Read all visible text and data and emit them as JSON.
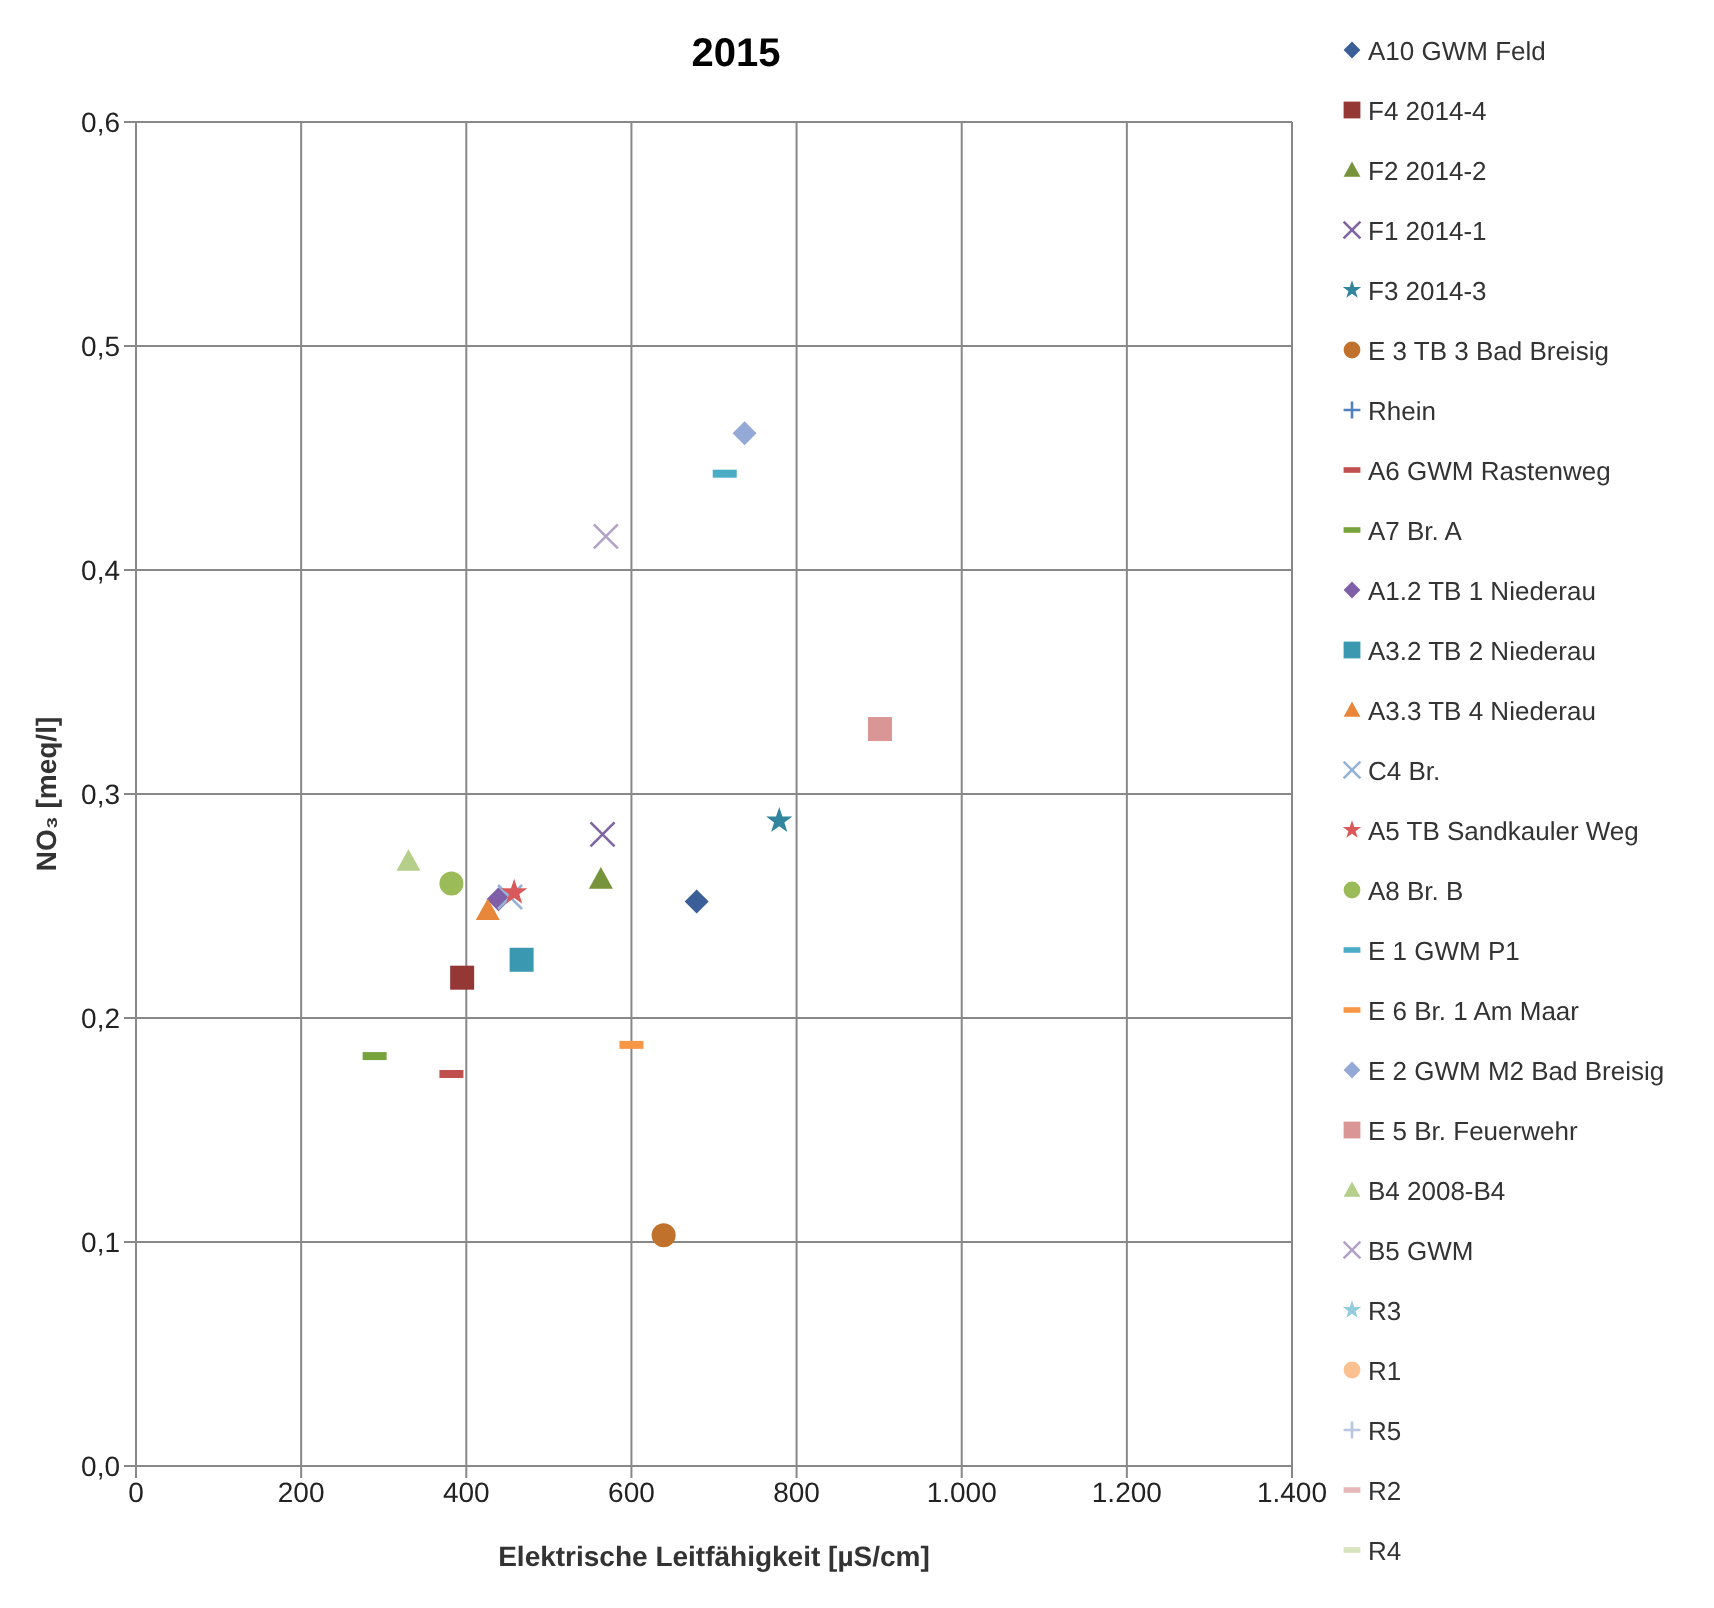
{
  "chart_data": {
    "type": "scatter",
    "title": "2015",
    "xlabel": "Elektrische Leitfähigkeit [µS/cm]",
    "ylabel": "NO₃ [meq/l]",
    "xlim": [
      0,
      1400
    ],
    "ylim": [
      0,
      0.6
    ],
    "xticks": [
      0,
      200,
      400,
      600,
      800,
      {
        "value": 1000,
        "label": "1.000"
      },
      {
        "value": 1200,
        "label": "1.200"
      },
      {
        "value": 1400,
        "label": "1.400"
      }
    ],
    "yticks": [
      {
        "value": 0,
        "label": "0,0"
      },
      {
        "value": 0.1,
        "label": "0,1"
      },
      {
        "value": 0.2,
        "label": "0,2"
      },
      {
        "value": 0.3,
        "label": "0,3"
      },
      {
        "value": 0.4,
        "label": "0,4"
      },
      {
        "value": 0.5,
        "label": "0,5"
      },
      {
        "value": 0.6,
        "label": "0,6"
      }
    ],
    "grid": true,
    "legend": "right",
    "series": [
      {
        "name": "A10 GWM Feld",
        "color": "#3a5f98",
        "marker": "diamond",
        "x": [
          679
        ],
        "values": [
          0.252
        ]
      },
      {
        "name": "F4 2014-4",
        "color": "#953735",
        "marker": "square",
        "x": [
          395
        ],
        "values": [
          0.218
        ]
      },
      {
        "name": "F2 2014-2",
        "color": "#77933c",
        "marker": "triangle",
        "x": [
          563
        ],
        "values": [
          0.262
        ]
      },
      {
        "name": "F1 2014-1",
        "color": "#8064a2",
        "marker": "cross",
        "x": [
          565
        ],
        "values": [
          0.282
        ]
      },
      {
        "name": "F3 2014-3",
        "color": "#31859c",
        "marker": "star",
        "x": [
          779
        ],
        "values": [
          0.288
        ]
      },
      {
        "name": "E 3 TB 3 Bad Breisig",
        "color": "#c0712b",
        "marker": "circle",
        "x": [
          639
        ],
        "values": [
          0.103
        ]
      },
      {
        "name": "Rhein",
        "color": "#4f81bd",
        "marker": "plus",
        "x": [
          null
        ],
        "values": [
          null
        ]
      },
      {
        "name": "A6 GWM  Rastenweg",
        "color": "#c0504d",
        "x": [
          382
        ],
        "values": [
          0.175
        ]
      },
      {
        "name": "A7 Br. A",
        "color": "#77a33c",
        "x": [
          289
        ],
        "values": [
          0.183
        ]
      },
      {
        "name": "A1.2 TB 1 Niederau",
        "color": "#7f5fa8",
        "marker": "diamond",
        "x": [
          439
        ],
        "values": [
          0.253
        ]
      },
      {
        "name": "A3.2 TB 2 Niederau",
        "color": "#3a98b0",
        "marker": "square",
        "x": [
          467
        ],
        "values": [
          0.226
        ]
      },
      {
        "name": "A3.3 TB 4 Niederau",
        "color": "#e8873a",
        "marker": "triangle",
        "x": [
          426
        ],
        "values": [
          0.248
        ]
      },
      {
        "name": "C4 Br.",
        "color": "#95b3d7",
        "marker": "cross",
        "x": [
          453
        ],
        "values": [
          0.254
        ]
      },
      {
        "name": "A5 TB Sandkauler Weg",
        "color": "#d9595a",
        "marker": "star",
        "x": [
          458
        ],
        "values": [
          0.256
        ]
      },
      {
        "name": "A8 Br. B",
        "color": "#9bbb59",
        "marker": "circle",
        "x": [
          382
        ],
        "values": [
          0.26
        ]
      },
      {
        "name": "E 1 GWM  P1",
        "color": "#4bacc6",
        "x": [
          713
        ],
        "values": [
          0.443
        ]
      },
      {
        "name": "E 6 Br. 1 Am  Maar",
        "color": "#f79646",
        "x": [
          600
        ],
        "values": [
          0.188
        ]
      },
      {
        "name": "E 2 GWM  M2 Bad Breisig",
        "color": "#95a9d7",
        "marker": "diamond",
        "x": [
          737
        ],
        "values": [
          0.461
        ]
      },
      {
        "name": "E 5 Br. Feuerwehr",
        "color": "#d99694",
        "marker": "square",
        "x": [
          901
        ],
        "values": [
          0.329
        ]
      },
      {
        "name": "B4 2008-B4",
        "color": "#b5cf8b",
        "marker": "triangle",
        "x": [
          330
        ],
        "values": [
          0.27
        ]
      },
      {
        "name": "B5 GWM",
        "color": "#b3a2c7",
        "marker": "cross",
        "x": [
          569
        ],
        "values": [
          0.415
        ]
      },
      {
        "name": "R3",
        "color": "#93cddd",
        "marker": "star",
        "x": [
          null
        ],
        "values": [
          null
        ]
      },
      {
        "name": "R1",
        "color": "#fac090",
        "marker": "circle",
        "x": [
          null
        ],
        "values": [
          null
        ]
      },
      {
        "name": "R5",
        "color": "#b9c6e0",
        "marker": "plus",
        "x": [
          null
        ],
        "values": [
          null
        ]
      },
      {
        "name": "R2",
        "color": "#e6b9b8",
        "x": [
          null
        ],
        "values": [
          null
        ]
      },
      {
        "name": "R4",
        "color": "#d7e4bd",
        "x": [
          null
        ],
        "values": [
          null
        ]
      }
    ]
  }
}
